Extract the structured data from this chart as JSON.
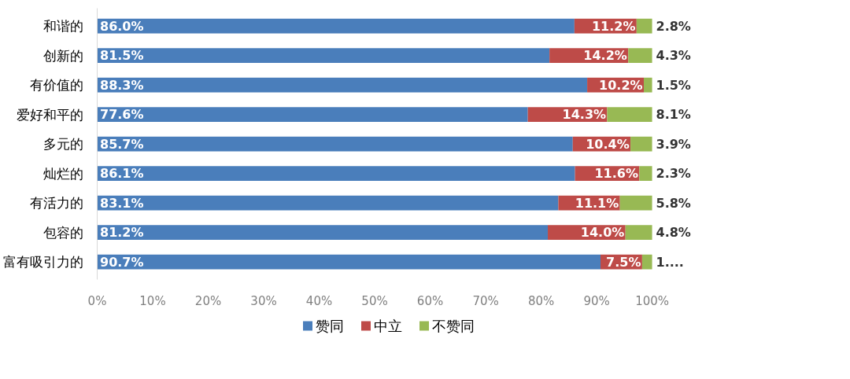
{
  "chart_data": {
    "type": "bar",
    "orientation": "horizontal",
    "stacked": true,
    "categories": [
      "和谐的",
      "创新的",
      "有价值的",
      "爱好和平的",
      "多元的",
      "灿烂的",
      "有活力的",
      "包容的",
      "富有吸引力的"
    ],
    "series": [
      {
        "name": "赞同",
        "color": "#4a7ebb",
        "values": [
          86.0,
          81.5,
          88.3,
          77.6,
          85.7,
          86.1,
          83.1,
          81.2,
          90.7
        ],
        "value_labels": [
          "86.0%",
          "81.5%",
          "88.3%",
          "77.6%",
          "85.7%",
          "86.1%",
          "83.1%",
          "81.2%",
          "90.7%"
        ]
      },
      {
        "name": "中立",
        "color": "#be4b48",
        "values": [
          11.2,
          14.2,
          10.2,
          14.3,
          10.4,
          11.6,
          11.1,
          14.0,
          7.5
        ],
        "value_labels": [
          "11.2%",
          "14.2%",
          "10.2%",
          "14.3%",
          "10.4%",
          "11.6%",
          "11.1%",
          "14.0%",
          "7.5%"
        ]
      },
      {
        "name": "不赞同",
        "color": "#98b954",
        "values": [
          2.8,
          4.3,
          1.5,
          8.1,
          3.9,
          2.3,
          5.8,
          4.8,
          1.8
        ],
        "value_labels": [
          "2.8%",
          "4.3%",
          "1.5%",
          "8.1%",
          "3.9%",
          "2.3%",
          "5.8%",
          "4.8%",
          "1...."
        ]
      }
    ],
    "xlim": [
      0,
      100
    ],
    "xticks": [
      {
        "value": 0,
        "label": "0%"
      },
      {
        "value": 10,
        "label": "10%"
      },
      {
        "value": 20,
        "label": "20%"
      },
      {
        "value": 30,
        "label": "30%"
      },
      {
        "value": 40,
        "label": "40%"
      },
      {
        "value": 50,
        "label": "50%"
      },
      {
        "value": 60,
        "label": "60%"
      },
      {
        "value": 70,
        "label": "70%"
      },
      {
        "value": 80,
        "label": "80%"
      },
      {
        "value": 90,
        "label": "90%"
      },
      {
        "value": 100,
        "label": "100%"
      }
    ],
    "grid": false,
    "legend": "bottom"
  }
}
